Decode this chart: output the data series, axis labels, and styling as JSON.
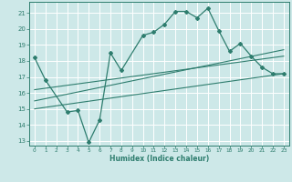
{
  "title": "",
  "xlabel": "Humidex (Indice chaleur)",
  "bg_color": "#cde8e8",
  "grid_color": "#b0d0d0",
  "line_color": "#2e7d6e",
  "xlim": [
    -0.5,
    23.5
  ],
  "ylim": [
    12.7,
    21.7
  ],
  "yticks": [
    13,
    14,
    15,
    16,
    17,
    18,
    19,
    20,
    21
  ],
  "xticks": [
    0,
    1,
    2,
    3,
    4,
    5,
    6,
    7,
    8,
    9,
    10,
    11,
    12,
    13,
    14,
    15,
    16,
    17,
    18,
    19,
    20,
    21,
    22,
    23
  ],
  "line1_x": [
    0,
    1,
    3,
    4,
    5,
    6,
    7,
    8,
    10,
    11,
    12,
    13,
    14,
    15,
    16,
    17,
    18,
    19,
    20,
    21,
    22,
    23
  ],
  "line1_y": [
    18.2,
    16.8,
    14.8,
    14.9,
    12.9,
    14.3,
    18.5,
    17.4,
    19.6,
    19.8,
    20.3,
    21.1,
    21.1,
    20.7,
    21.3,
    19.9,
    18.6,
    19.1,
    18.3,
    17.6,
    17.2,
    17.2
  ],
  "line2_x": [
    0,
    23
  ],
  "line2_y": [
    15.0,
    17.2
  ],
  "line3_x": [
    0,
    23
  ],
  "line3_y": [
    15.5,
    18.7
  ],
  "line4_x": [
    0,
    23
  ],
  "line4_y": [
    16.2,
    18.3
  ]
}
